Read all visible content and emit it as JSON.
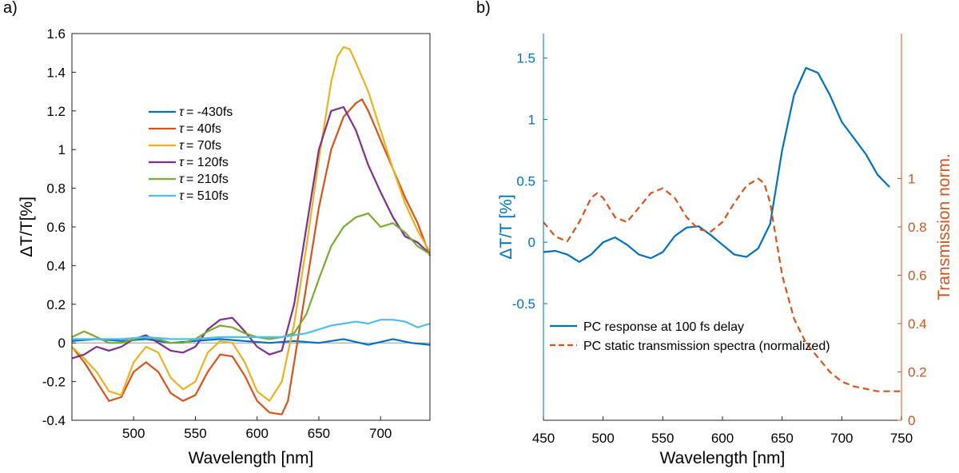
{
  "chart_data": [
    {
      "type": "line",
      "panel_label": "a)",
      "xlabel": "Wavelength [nm]",
      "ylabel": "ΔT/T[%]",
      "xlim": [
        450,
        740
      ],
      "ylim": [
        -0.4,
        1.6
      ],
      "xticks": [
        500,
        550,
        600,
        650,
        700
      ],
      "yticks": [
        -0.4,
        -0.2,
        0,
        0.2,
        0.4,
        0.6,
        0.8,
        1,
        1.2,
        1.4,
        1.6
      ],
      "ytick_labels": [
        "-0.4",
        "-0.2",
        "0",
        "0.2",
        "0.4",
        "0.6",
        "0.8",
        "1",
        "1.2",
        "1.4",
        "1.6"
      ],
      "legend_position": "upper-left",
      "legend_symbol": "τ",
      "series": [
        {
          "name": "= -430fs",
          "color": "#0072BD",
          "x": [
            450,
            470,
            490,
            510,
            530,
            550,
            570,
            590,
            610,
            630,
            650,
            670,
            690,
            710,
            725,
            740
          ],
          "y": [
            0.01,
            0.02,
            0.01,
            0.02,
            0.0,
            0.01,
            0.02,
            0.01,
            0.0,
            0.01,
            0.0,
            0.02,
            -0.01,
            0.02,
            0.0,
            -0.01
          ]
        },
        {
          "name": "= 40fs",
          "color": "#D95319",
          "x": [
            450,
            460,
            470,
            480,
            490,
            500,
            510,
            520,
            530,
            540,
            550,
            560,
            570,
            580,
            590,
            600,
            610,
            620,
            625,
            630,
            640,
            650,
            660,
            670,
            680,
            685,
            690,
            700,
            710,
            720,
            730,
            740
          ],
          "y": [
            -0.02,
            -0.1,
            -0.2,
            -0.3,
            -0.28,
            -0.15,
            -0.1,
            -0.15,
            -0.26,
            -0.3,
            -0.27,
            -0.15,
            -0.06,
            -0.07,
            -0.17,
            -0.3,
            -0.36,
            -0.37,
            -0.3,
            -0.1,
            0.3,
            0.7,
            1.0,
            1.17,
            1.24,
            1.26,
            1.2,
            1.05,
            0.9,
            0.75,
            0.62,
            0.45
          ]
        },
        {
          "name": "= 70fs",
          "color": "#EDB120",
          "x": [
            450,
            460,
            470,
            480,
            490,
            500,
            510,
            520,
            530,
            540,
            550,
            560,
            570,
            580,
            590,
            600,
            610,
            620,
            630,
            640,
            650,
            660,
            665,
            670,
            675,
            680,
            690,
            700,
            710,
            720,
            730,
            740
          ],
          "y": [
            -0.02,
            -0.08,
            -0.15,
            -0.25,
            -0.27,
            -0.1,
            -0.02,
            -0.05,
            -0.18,
            -0.24,
            -0.2,
            -0.05,
            0.01,
            0.0,
            -0.1,
            -0.25,
            -0.3,
            -0.2,
            0.1,
            0.5,
            0.95,
            1.35,
            1.48,
            1.53,
            1.52,
            1.45,
            1.3,
            1.1,
            0.9,
            0.72,
            0.58,
            0.47
          ]
        },
        {
          "name": "= 120fs",
          "color": "#7E2F8E",
          "x": [
            450,
            460,
            470,
            480,
            490,
            500,
            510,
            520,
            530,
            540,
            550,
            560,
            570,
            580,
            590,
            600,
            610,
            620,
            630,
            640,
            650,
            660,
            670,
            680,
            690,
            700,
            710,
            720,
            730,
            740
          ],
          "y": [
            -0.08,
            -0.06,
            -0.02,
            -0.04,
            -0.02,
            0.02,
            0.04,
            0.0,
            -0.04,
            -0.05,
            -0.02,
            0.07,
            0.12,
            0.13,
            0.06,
            -0.02,
            -0.06,
            -0.04,
            0.2,
            0.6,
            1.0,
            1.2,
            1.22,
            1.1,
            0.92,
            0.78,
            0.65,
            0.55,
            0.52,
            0.46
          ]
        },
        {
          "name": "= 210fs",
          "color": "#77AC30",
          "x": [
            450,
            460,
            470,
            480,
            490,
            500,
            510,
            520,
            530,
            540,
            550,
            560,
            570,
            580,
            590,
            600,
            610,
            620,
            630,
            640,
            650,
            660,
            670,
            680,
            690,
            700,
            710,
            720,
            730,
            740
          ],
          "y": [
            0.03,
            0.06,
            0.03,
            0.0,
            0.0,
            0.02,
            0.03,
            0.02,
            0.0,
            0.0,
            0.02,
            0.06,
            0.09,
            0.08,
            0.05,
            0.03,
            0.02,
            0.03,
            0.05,
            0.15,
            0.33,
            0.5,
            0.6,
            0.65,
            0.67,
            0.6,
            0.62,
            0.57,
            0.5,
            0.46
          ]
        },
        {
          "name": "= 510fs",
          "color": "#4DBEEE",
          "x": [
            450,
            470,
            490,
            510,
            530,
            550,
            570,
            590,
            610,
            620,
            630,
            640,
            650,
            660,
            670,
            680,
            690,
            700,
            710,
            720,
            730,
            740
          ],
          "y": [
            0.02,
            0.02,
            0.02,
            0.03,
            0.02,
            0.02,
            0.03,
            0.03,
            0.03,
            0.03,
            0.04,
            0.05,
            0.07,
            0.09,
            0.1,
            0.11,
            0.1,
            0.12,
            0.12,
            0.11,
            0.08,
            0.1
          ]
        }
      ]
    },
    {
      "type": "line",
      "panel_label": "b)",
      "xlabel": "Wavelength [nm]",
      "ylabel_left": "ΔT/T [%]",
      "ylabel_right": "Transmission norm.",
      "xlim": [
        450,
        750
      ],
      "ylim_left": [
        -1.45,
        1.7
      ],
      "ylim_right": [
        0,
        1.6
      ],
      "xticks": [
        450,
        500,
        550,
        600,
        650,
        700,
        750
      ],
      "yticks_left": [
        -0.5,
        0,
        0.5,
        1,
        1.5
      ],
      "ytick_labels_left": [
        "-0.5",
        "0",
        "0.5",
        "1",
        "1.5"
      ],
      "yticks_right": [
        0,
        0.2,
        0.4,
        0.6,
        0.8,
        1
      ],
      "ytick_labels_right": [
        "0",
        "0.2",
        "0.4",
        "0.6",
        "0.8",
        "1"
      ],
      "legend_position": "lower-center",
      "series": [
        {
          "name": "PC response at 100 fs delay",
          "color": "#0072BD",
          "axis": "left",
          "dash": "solid",
          "x": [
            450,
            460,
            470,
            480,
            490,
            500,
            510,
            520,
            530,
            540,
            550,
            560,
            570,
            580,
            590,
            600,
            610,
            620,
            630,
            640,
            650,
            660,
            670,
            680,
            690,
            700,
            710,
            720,
            730,
            740
          ],
          "y": [
            -0.08,
            -0.07,
            -0.1,
            -0.16,
            -0.1,
            0.0,
            0.04,
            -0.02,
            -0.1,
            -0.13,
            -0.08,
            0.05,
            0.12,
            0.13,
            0.06,
            -0.02,
            -0.1,
            -0.12,
            -0.05,
            0.15,
            0.75,
            1.2,
            1.42,
            1.38,
            1.2,
            0.98,
            0.85,
            0.72,
            0.55,
            0.45
          ]
        },
        {
          "name": "PC static transmission spectra (normalized)",
          "color": "#D95319",
          "axis": "right",
          "dash": "dashed",
          "x": [
            450,
            460,
            470,
            480,
            490,
            495,
            500,
            510,
            520,
            530,
            540,
            550,
            560,
            570,
            580,
            590,
            600,
            610,
            620,
            630,
            635,
            640,
            650,
            660,
            670,
            680,
            690,
            700,
            710,
            720,
            730,
            740,
            750
          ],
          "y": [
            0.82,
            0.76,
            0.74,
            0.82,
            0.92,
            0.94,
            0.92,
            0.84,
            0.82,
            0.88,
            0.94,
            0.96,
            0.92,
            0.84,
            0.79,
            0.78,
            0.82,
            0.9,
            0.97,
            1.0,
            0.98,
            0.9,
            0.6,
            0.42,
            0.32,
            0.26,
            0.2,
            0.16,
            0.14,
            0.13,
            0.12,
            0.12,
            0.12
          ]
        }
      ]
    }
  ]
}
